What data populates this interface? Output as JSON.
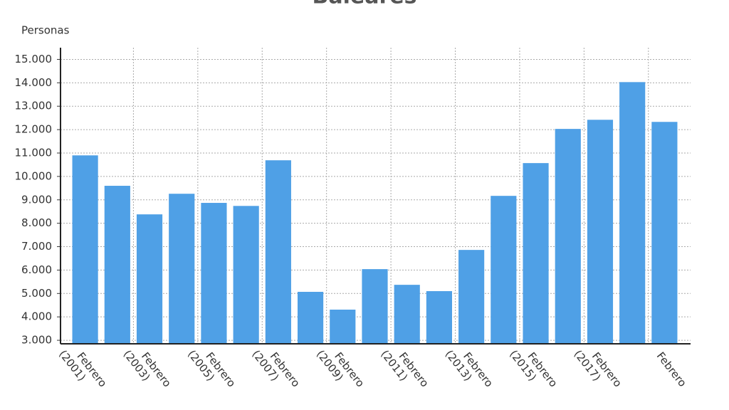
{
  "chart_data": {
    "type": "bar",
    "title": "Baleares",
    "y_label": "Personas",
    "categories": [
      "Febrero (2001)",
      null,
      "Febrero (2003)",
      null,
      "Febrero (2005)",
      null,
      "Febrero (2007)",
      null,
      "Febrero (2009)",
      null,
      "Febrero (2011)",
      null,
      "Febrero (2013)",
      null,
      "Febrero (2015)",
      null,
      "Febrero (2017)",
      null,
      "Febrero"
    ],
    "values": [
      10900,
      9600,
      8380,
      9260,
      8870,
      8740,
      10690,
      5070,
      4310,
      6040,
      5370,
      5100,
      6860,
      9170,
      10570,
      12030,
      12420,
      14030,
      12330
    ],
    "color": "#4fa0e6",
    "ylim": [
      2850,
      15500
    ],
    "yticks": [
      {
        "value": 3000,
        "label": "3.000"
      },
      {
        "value": 4000,
        "label": "4.000"
      },
      {
        "value": 5000,
        "label": "5.000"
      },
      {
        "value": 6000,
        "label": "6.000"
      },
      {
        "value": 7000,
        "label": "7.000"
      },
      {
        "value": 8000,
        "label": "8.000"
      },
      {
        "value": 9000,
        "label": "9.000"
      },
      {
        "value": 10000,
        "label": "10.000"
      },
      {
        "value": 11000,
        "label": "11.000"
      },
      {
        "value": 12000,
        "label": "12.000"
      },
      {
        "value": 13000,
        "label": "13.000"
      },
      {
        "value": 14000,
        "label": "14.000"
      },
      {
        "value": 15000,
        "label": "15.000"
      }
    ],
    "grid": true
  }
}
